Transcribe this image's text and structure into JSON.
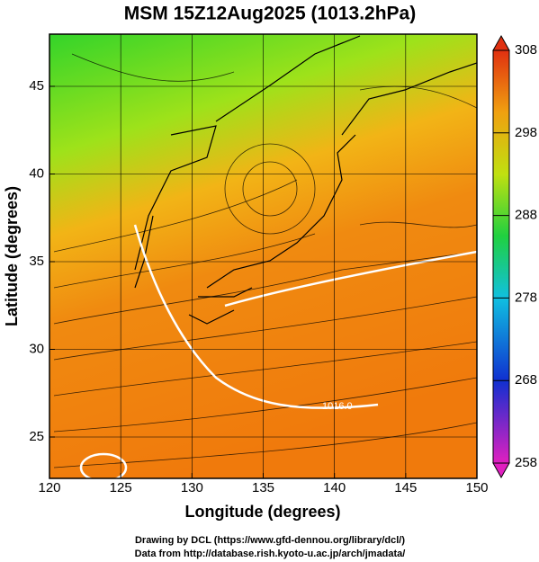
{
  "title": "MSM 15Z12Aug2025 (1013.2hPa)",
  "x_axis": {
    "label": "Longitude (degrees)",
    "ticks": [
      120,
      125,
      130,
      135,
      140,
      145,
      150
    ]
  },
  "y_axis": {
    "label": "Latitude  (degrees)",
    "ticks": [
      25,
      30,
      35,
      40,
      45
    ]
  },
  "colorbar": {
    "ticks": [
      258,
      268,
      278,
      288,
      298,
      308
    ]
  },
  "contour_label": "1016.0",
  "credits": [
    "Drawing by DCL (https://www.gfd-dennou.org/library/dcl/)",
    "Data from http://database.rish.kyoto-u.ac.jp/arch/jmadata/"
  ]
}
